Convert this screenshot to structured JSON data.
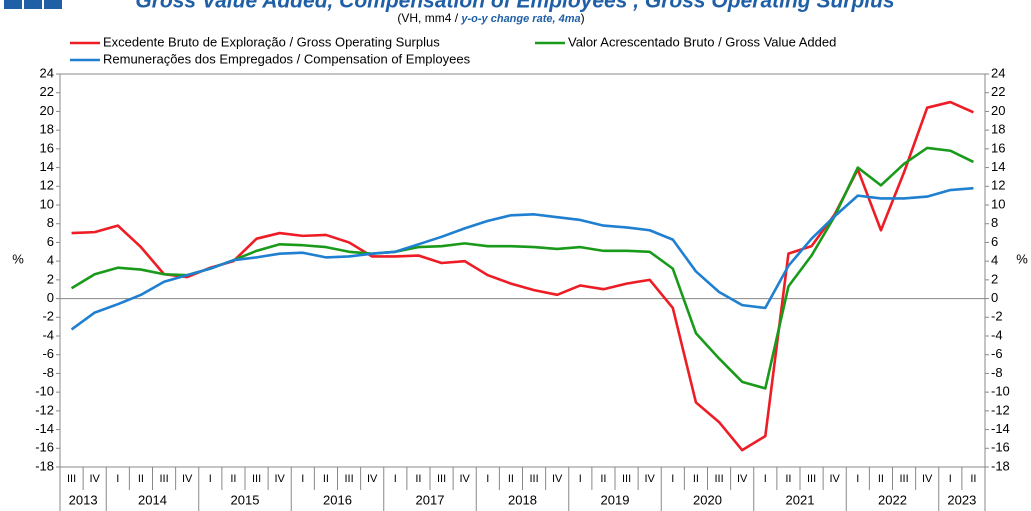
{
  "chart_data": {
    "type": "line",
    "title": "Gross Value Added, Compensation of Employees , Gross Operating Surplus",
    "subtitle": [
      "(VH, mm4 / ",
      "y-o-y change rate, 4ma",
      ")"
    ],
    "y_label": "%",
    "categories": [
      "III",
      "IV",
      "I",
      "II",
      "III",
      "IV",
      "I",
      "II",
      "III",
      "IV",
      "I",
      "II",
      "III",
      "IV",
      "I",
      "II",
      "III",
      "IV",
      "I",
      "II",
      "III",
      "IV",
      "I",
      "II",
      "III",
      "IV",
      "I",
      "II",
      "III",
      "IV",
      "I",
      "II",
      "III",
      "IV",
      "I",
      "II",
      "III",
      "IV",
      "I",
      "II"
    ],
    "years": [
      "2013",
      "2014",
      "2015",
      "2016",
      "2017",
      "2018",
      "2019",
      "2020",
      "2021",
      "2022",
      "2023"
    ],
    "series": [
      {
        "name": "Excedente Bruto de Exploração / Gross Operating Surplus",
        "color": "#ee1c25",
        "values": [
          7.0,
          7.1,
          7.8,
          5.5,
          2.6,
          2.3,
          3.3,
          4.0,
          6.4,
          7.0,
          6.7,
          6.8,
          6.0,
          4.5,
          4.5,
          4.6,
          3.8,
          4.0,
          2.5,
          1.6,
          0.9,
          0.4,
          1.4,
          1.0,
          1.6,
          2.0,
          -1.0,
          -11.1,
          -13.2,
          -16.2,
          -14.7,
          4.8,
          5.6,
          9.0,
          13.8,
          7.3,
          13.5,
          20.4,
          21.0,
          19.9
        ]
      },
      {
        "name": "Valor Acrescentado Bruto / Gross Value Added",
        "color": "#1a9a1a",
        "values": [
          1.1,
          2.6,
          3.3,
          3.1,
          2.6,
          2.5,
          3.2,
          4.1,
          5.1,
          5.8,
          5.7,
          5.5,
          5.0,
          4.8,
          5.0,
          5.5,
          5.6,
          5.9,
          5.6,
          5.6,
          5.5,
          5.3,
          5.5,
          5.1,
          5.1,
          5.0,
          3.2,
          -3.7,
          -6.4,
          -8.9,
          -9.6,
          1.3,
          4.6,
          8.8,
          14.0,
          12.1,
          14.4,
          16.1,
          15.8,
          14.6
        ]
      },
      {
        "name": "Remunerações dos Empregados / Compensation of Employees",
        "color": "#1f7fd0",
        "values": [
          -3.3,
          -1.5,
          -0.6,
          0.4,
          1.8,
          2.5,
          3.2,
          4.1,
          4.4,
          4.8,
          4.9,
          4.4,
          4.5,
          4.8,
          5.0,
          5.8,
          6.6,
          7.5,
          8.3,
          8.9,
          9.0,
          8.7,
          8.4,
          7.8,
          7.6,
          7.3,
          6.3,
          2.9,
          0.7,
          -0.7,
          -1.0,
          3.5,
          6.4,
          8.8,
          11.0,
          10.7,
          10.7,
          10.9,
          11.6,
          11.8
        ]
      }
    ],
    "ylim": [
      -18,
      24
    ],
    "yticks": [
      -18,
      -16,
      -14,
      -12,
      -10,
      -8,
      -6,
      -4,
      -2,
      0,
      2,
      4,
      6,
      8,
      10,
      12,
      14,
      16,
      18,
      20,
      22,
      24
    ]
  }
}
